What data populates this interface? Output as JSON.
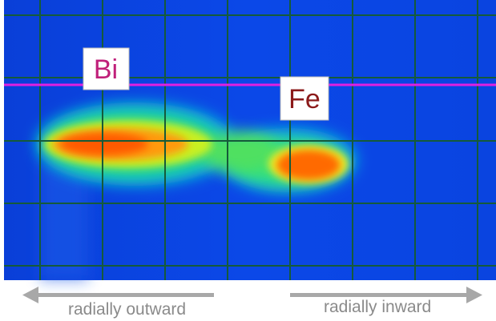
{
  "labels": {
    "bi": "Bi",
    "fe": "Fe"
  },
  "arrows": {
    "outward": "radially outward",
    "inward": "radially inward"
  }
}
